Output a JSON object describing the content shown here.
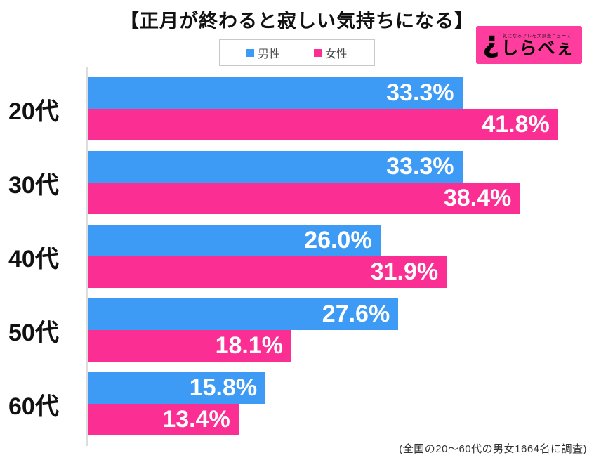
{
  "title": "【正月が終わると寂しい気持ちになる】",
  "legend": {
    "male_label": "男性",
    "female_label": "女性"
  },
  "logo": {
    "mark": "¿",
    "tagline": "気になるアレを大調査ニュース!",
    "name": "しらべぇ"
  },
  "footnote": "(全国の20〜60代の男女1664名に調査)",
  "colors": {
    "male": "#3D9AF5",
    "female": "#FA2E93",
    "logo_bg": "#FF3D9E",
    "axis": "#dddddd"
  },
  "chart_data": {
    "type": "bar",
    "orientation": "horizontal",
    "title": "【正月が終わると寂しい気持ちになる】",
    "categories": [
      "20代",
      "30代",
      "40代",
      "50代",
      "60代"
    ],
    "series": [
      {
        "name": "男性",
        "color": "#3D9AF5",
        "values": [
          33.3,
          33.3,
          26.0,
          27.6,
          15.8
        ]
      },
      {
        "name": "女性",
        "color": "#FA2E93",
        "values": [
          41.8,
          38.4,
          31.9,
          18.1,
          13.4
        ]
      }
    ],
    "value_suffix": "%",
    "xlim": [
      0,
      45
    ],
    "grid": false,
    "legend_position": "top-center",
    "value_labels": "inside-end",
    "footnote": "(全国の20〜60代の男女1664名に調査)"
  }
}
